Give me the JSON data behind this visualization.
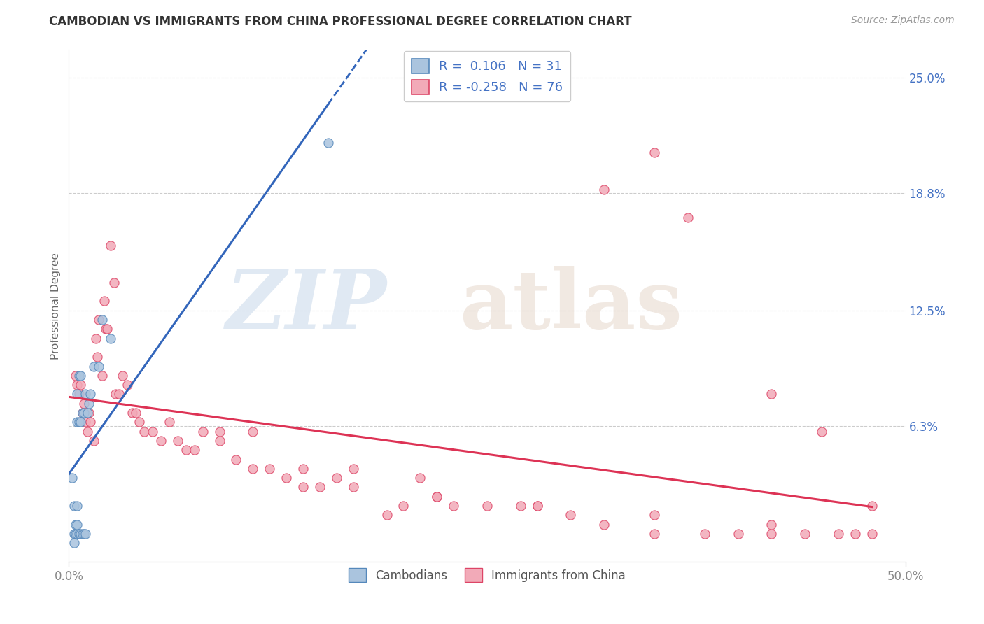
{
  "title": "CAMBODIAN VS IMMIGRANTS FROM CHINA PROFESSIONAL DEGREE CORRELATION CHART",
  "source": "Source: ZipAtlas.com",
  "ylabel": "Professional Degree",
  "xlim": [
    0.0,
    0.5
  ],
  "ylim": [
    -0.01,
    0.265
  ],
  "xtick_positions": [
    0.0,
    0.5
  ],
  "xtick_labels": [
    "0.0%",
    "50.0%"
  ],
  "ytick_vals": [
    0.063,
    0.125,
    0.188,
    0.25
  ],
  "ytick_labels": [
    "6.3%",
    "12.5%",
    "18.8%",
    "25.0%"
  ],
  "legend_R_cambodian": "0.106",
  "legend_N_cambodian": "31",
  "legend_R_china": "-0.258",
  "legend_N_china": "76",
  "cambodian_color": "#aac4de",
  "cambodian_edge": "#5588bb",
  "china_color": "#f2aab8",
  "china_edge": "#dd4466",
  "trend_cambodian_color": "#3366bb",
  "trend_china_color": "#dd3355",
  "background_color": "#ffffff",
  "grid_color": "#cccccc",
  "cam_x": [
    0.002,
    0.003,
    0.003,
    0.004,
    0.004,
    0.005,
    0.005,
    0.005,
    0.005,
    0.005,
    0.006,
    0.006,
    0.006,
    0.007,
    0.007,
    0.007,
    0.008,
    0.008,
    0.009,
    0.009,
    0.01,
    0.01,
    0.011,
    0.012,
    0.013,
    0.015,
    0.018,
    0.02,
    0.025,
    0.155,
    0.003
  ],
  "cam_y": [
    0.035,
    0.005,
    0.02,
    0.005,
    0.01,
    0.005,
    0.01,
    0.02,
    0.065,
    0.08,
    0.005,
    0.065,
    0.09,
    0.005,
    0.065,
    0.09,
    0.005,
    0.07,
    0.005,
    0.07,
    0.005,
    0.08,
    0.07,
    0.075,
    0.08,
    0.095,
    0.095,
    0.12,
    0.11,
    0.215,
    0.0
  ],
  "china_x": [
    0.004,
    0.005,
    0.006,
    0.007,
    0.008,
    0.009,
    0.01,
    0.011,
    0.012,
    0.013,
    0.015,
    0.016,
    0.017,
    0.018,
    0.02,
    0.021,
    0.022,
    0.023,
    0.025,
    0.027,
    0.028,
    0.03,
    0.032,
    0.035,
    0.038,
    0.04,
    0.042,
    0.045,
    0.05,
    0.055,
    0.06,
    0.065,
    0.07,
    0.075,
    0.08,
    0.09,
    0.1,
    0.11,
    0.12,
    0.13,
    0.14,
    0.15,
    0.16,
    0.17,
    0.19,
    0.2,
    0.21,
    0.22,
    0.23,
    0.25,
    0.27,
    0.28,
    0.3,
    0.32,
    0.35,
    0.38,
    0.4,
    0.42,
    0.44,
    0.46,
    0.48,
    0.32,
    0.35,
    0.37,
    0.42,
    0.45,
    0.48,
    0.09,
    0.11,
    0.14,
    0.17,
    0.22,
    0.28,
    0.35,
    0.42,
    0.47
  ],
  "china_y": [
    0.09,
    0.085,
    0.08,
    0.085,
    0.07,
    0.075,
    0.065,
    0.06,
    0.07,
    0.065,
    0.055,
    0.11,
    0.1,
    0.12,
    0.09,
    0.13,
    0.115,
    0.115,
    0.16,
    0.14,
    0.08,
    0.08,
    0.09,
    0.085,
    0.07,
    0.07,
    0.065,
    0.06,
    0.06,
    0.055,
    0.065,
    0.055,
    0.05,
    0.05,
    0.06,
    0.055,
    0.045,
    0.04,
    0.04,
    0.035,
    0.03,
    0.03,
    0.035,
    0.04,
    0.015,
    0.02,
    0.035,
    0.025,
    0.02,
    0.02,
    0.02,
    0.02,
    0.015,
    0.01,
    0.005,
    0.005,
    0.005,
    0.005,
    0.005,
    0.005,
    0.005,
    0.19,
    0.21,
    0.175,
    0.08,
    0.06,
    0.02,
    0.06,
    0.06,
    0.04,
    0.03,
    0.025,
    0.02,
    0.015,
    0.01,
    0.005
  ]
}
